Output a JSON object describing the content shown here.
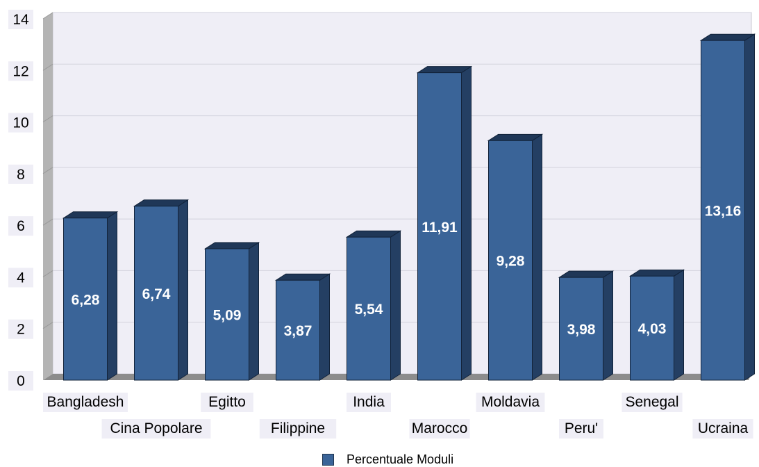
{
  "chart_data": {
    "type": "bar",
    "categories": [
      "Bangladesh",
      "Cina Popolare",
      "Egitto",
      "Filippine",
      "India",
      "Marocco",
      "Moldavia",
      "Peru'",
      "Senegal",
      "Ucraina"
    ],
    "series": [
      {
        "name": "Percentuale Moduli",
        "values": [
          6.28,
          6.74,
          5.09,
          3.87,
          5.54,
          11.91,
          9.28,
          3.98,
          4.03,
          13.16
        ]
      }
    ],
    "value_labels": [
      "6,28",
      "6,74",
      "5,09",
      "3,87",
      "5,54",
      "11,91",
      "9,28",
      "3,98",
      "4,03",
      "13,16"
    ],
    "y_ticks": [
      "0",
      "2",
      "4",
      "6",
      "8",
      "10",
      "12",
      "14"
    ],
    "ylim": [
      0,
      14
    ],
    "grid": true,
    "legend_position": "bottom",
    "colors": {
      "bar_front": "#3a6498",
      "bar_side": "#243f63",
      "bar_top": "#1f3757",
      "plot_bg": "#efeef6",
      "floor": "#8c8c8c",
      "wall": "#b4b4b4"
    }
  }
}
